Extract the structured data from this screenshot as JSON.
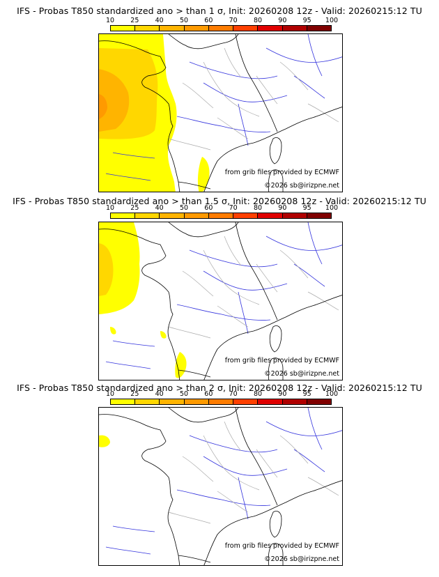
{
  "panels": [
    {
      "title": "IFS - Probas T850  standardized ano > than 1 σ, Init: 20260208 12z - Valid: 20260215:12 TU",
      "credit": "from grib files provided by ECMWF",
      "copyright": "©2026 sb@irizpne.net",
      "coverage": "strong"
    },
    {
      "title": "IFS - Probas T850  standardized ano > than 1.5 σ, Init: 20260208 12z - Valid: 20260215:12 TU",
      "credit": "from grib files provided by ECMWF",
      "copyright": "©2026 sb@irizpne.net",
      "coverage": "medium"
    },
    {
      "title": "IFS - Probas T850  standardized ano > than 2 σ, Init: 20260208 12z - Valid: 20260215:12 TU",
      "credit": "from grib files provided by ECMWF",
      "copyright": "©2026 sb@irizpne.net",
      "coverage": "weak"
    }
  ],
  "scale": {
    "labels": [
      "10",
      "25",
      "40",
      "50",
      "60",
      "70",
      "80",
      "90",
      "95",
      "100"
    ],
    "colors": [
      "#ffff00",
      "#ffd700",
      "#ffb400",
      "#ff9a00",
      "#ff7c00",
      "#ff4000",
      "#e00000",
      "#b00000",
      "#800000"
    ]
  }
}
